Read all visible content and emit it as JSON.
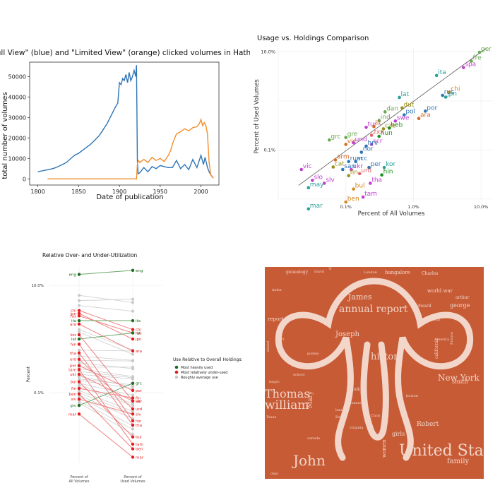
{
  "colors": {
    "blue": "#2e75b6",
    "orange": "#f28e2b",
    "green": "#1f6b1f",
    "red": "#e41a1c",
    "gray": "#c8c8c8",
    "cloud_bg": "#c75b36",
    "cloud_fg": "#f3d5c8"
  },
  "chart_data": [
    {
      "type": "line",
      "title": "\"Full View\" (blue) and \"Limited View\" (orange) clicked volumes in HathiTrust",
      "xlabel": "Date of publication",
      "ylabel": "total number of volumes",
      "xlim": [
        1790,
        2022
      ],
      "ylim": [
        -3000,
        57000
      ],
      "xticks": [
        1800,
        1850,
        1900,
        1950,
        2000
      ],
      "yticks": [
        0,
        10000,
        20000,
        30000,
        40000,
        50000
      ],
      "ytick_labels": [
        "0",
        "10000",
        "20000",
        "30000",
        "40000",
        "50000"
      ],
      "series": [
        {
          "name": "Full View",
          "color": "blue",
          "x": [
            1800,
            1805,
            1810,
            1815,
            1820,
            1825,
            1830,
            1835,
            1840,
            1845,
            1850,
            1855,
            1860,
            1865,
            1870,
            1875,
            1880,
            1885,
            1890,
            1895,
            1898,
            1900,
            1902,
            1904,
            1906,
            1908,
            1910,
            1912,
            1914,
            1916,
            1918,
            1920,
            1921,
            1922,
            1923,
            1925,
            1930,
            1935,
            1940,
            1945,
            1950,
            1955,
            1960,
            1965,
            1970,
            1975,
            1980,
            1985,
            1990,
            1995,
            2000,
            2003,
            2005,
            2008,
            2010,
            2012,
            2015
          ],
          "y": [
            3500,
            3900,
            4300,
            4700,
            5200,
            6000,
            7000,
            8000,
            9800,
            11500,
            12500,
            14000,
            15500,
            17000,
            19000,
            21000,
            24000,
            27000,
            31000,
            35000,
            37000,
            47000,
            46000,
            49000,
            48000,
            51000,
            47000,
            52000,
            48000,
            50000,
            53000,
            50000,
            55500,
            9000,
            2500,
            3000,
            5500,
            3500,
            6000,
            5000,
            6500,
            6000,
            5500,
            5500,
            9000,
            5000,
            7000,
            4500,
            9500,
            5500,
            11500,
            7000,
            10500,
            5500,
            3500,
            2000,
            500
          ]
        },
        {
          "name": "Limited View",
          "color": "orange",
          "x": [
            1812,
            1850,
            1900,
            1921,
            1922,
            1923,
            1925,
            1930,
            1935,
            1940,
            1945,
            1950,
            1955,
            1960,
            1963,
            1965,
            1968,
            1970,
            1975,
            1980,
            1985,
            1990,
            1995,
            1998,
            2000,
            2002,
            2004,
            2006,
            2008,
            2010,
            2012,
            2015
          ],
          "y": [
            0,
            0,
            0,
            0,
            7000,
            9000,
            8000,
            9500,
            8000,
            10500,
            9000,
            10000,
            8500,
            11500,
            14000,
            17000,
            20000,
            22000,
            23000,
            24500,
            23500,
            25000,
            25500,
            27000,
            29000,
            26000,
            27500,
            26000,
            22000,
            8000,
            2000,
            300
          ]
        }
      ]
    },
    {
      "type": "scatter",
      "title": "Usage vs. Holdings Comparison",
      "xlabel": "Percent of All Volumes",
      "ylabel": "Percent of Used Volumes",
      "xscale": "log",
      "yscale": "log",
      "xlim": [
        0.01,
        15
      ],
      "ylim": [
        0.009,
        12
      ],
      "xticks": [
        0.1,
        1,
        10
      ],
      "xtick_labels": [
        "0.1%",
        "1.0%",
        "10.0%"
      ],
      "yticks": [
        0.1,
        10
      ],
      "ytick_labels": [
        "0.1%",
        "10.0%"
      ],
      "reference_line": "y = x",
      "points": [
        {
          "label": "ger",
          "x": 9.5,
          "y": 9.8,
          "color": "#6aa84f"
        },
        {
          "label": "fre",
          "x": 7.2,
          "y": 6.5,
          "color": "#6aa84f"
        },
        {
          "label": "spa",
          "x": 5.5,
          "y": 4.8,
          "color": "#c13fd1"
        },
        {
          "label": "ita",
          "x": 2.2,
          "y": 3.3,
          "color": "#2aa198"
        },
        {
          "label": "chi",
          "x": 3.4,
          "y": 1.5,
          "color": "#d4881e"
        },
        {
          "label": "rus",
          "x": 2.7,
          "y": 1.3,
          "color": "#2e75b6"
        },
        {
          "label": "jpn",
          "x": 3.0,
          "y": 1.2,
          "color": "#2aa198"
        },
        {
          "label": "lat",
          "x": 0.62,
          "y": 1.18,
          "color": "#2aa198"
        },
        {
          "label": "dut",
          "x": 0.68,
          "y": 0.72,
          "color": "#9a8f1c"
        },
        {
          "label": "por",
          "x": 1.5,
          "y": 0.62,
          "color": "#2e75b6"
        },
        {
          "label": "pol",
          "x": 0.73,
          "y": 0.52,
          "color": "#2e75b6"
        },
        {
          "label": "ara",
          "x": 1.2,
          "y": 0.44,
          "color": "#d66b27"
        },
        {
          "label": "dan",
          "x": 0.38,
          "y": 0.6,
          "color": "#6aa84f"
        },
        {
          "label": "ind",
          "x": 0.31,
          "y": 0.4,
          "color": "#6aa84f"
        },
        {
          "label": "swe",
          "x": 0.54,
          "y": 0.39,
          "color": "#c13fd1"
        },
        {
          "label": "cze",
          "x": 0.36,
          "y": 0.27,
          "color": "#9a8f1c"
        },
        {
          "label": "heb",
          "x": 0.44,
          "y": 0.28,
          "color": "#1f8f1f"
        },
        {
          "label": "tur",
          "x": 0.2,
          "y": 0.29,
          "color": "#c13fd1"
        },
        {
          "label": "lit",
          "x": 0.26,
          "y": 0.3,
          "color": "#d66b27"
        },
        {
          "label": "zxx",
          "x": 0.24,
          "y": 0.2,
          "color": "#e06666"
        },
        {
          "label": "hun",
          "x": 0.31,
          "y": 0.19,
          "color": "#1f8f1f"
        },
        {
          "label": "grc",
          "x": 0.057,
          "y": 0.16,
          "color": "#6aa84f"
        },
        {
          "label": "gre",
          "x": 0.1,
          "y": 0.18,
          "color": "#6aa84f"
        },
        {
          "label": "vie",
          "x": 0.1,
          "y": 0.13,
          "color": "#d66b27"
        },
        {
          "label": "und",
          "x": 0.13,
          "y": 0.14,
          "color": "#c13fd1"
        },
        {
          "label": "scr",
          "x": 0.24,
          "y": 0.13,
          "color": "#c13fd1"
        },
        {
          "label": "hrv",
          "x": 0.2,
          "y": 0.12,
          "color": "#2e75b6"
        },
        {
          "label": "nor",
          "x": 0.17,
          "y": 0.09,
          "color": "#2e75b6"
        },
        {
          "label": "arm",
          "x": 0.07,
          "y": 0.063,
          "color": "#d66b27"
        },
        {
          "label": "rum",
          "x": 0.11,
          "y": 0.058,
          "color": "#2e75b6"
        },
        {
          "label": "scc",
          "x": 0.14,
          "y": 0.058,
          "color": "#2e75b6"
        },
        {
          "label": "cat",
          "x": 0.065,
          "y": 0.045,
          "color": "#9a8f1c"
        },
        {
          "label": "san",
          "x": 0.09,
          "y": 0.04,
          "color": "#2e75b6"
        },
        {
          "label": "ukr",
          "x": 0.12,
          "y": 0.04,
          "color": "#c13fd1"
        },
        {
          "label": "per",
          "x": 0.22,
          "y": 0.044,
          "color": "#2e75b6"
        },
        {
          "label": "kor",
          "x": 0.37,
          "y": 0.044,
          "color": "#2aa198"
        },
        {
          "label": "vic",
          "x": 0.022,
          "y": 0.04,
          "color": "#c13fd1"
        },
        {
          "label": "fin",
          "x": 0.11,
          "y": 0.03,
          "color": "#9a8f1c"
        },
        {
          "label": "urd",
          "x": 0.16,
          "y": 0.033,
          "color": "#e06666"
        },
        {
          "label": "hin",
          "x": 0.34,
          "y": 0.031,
          "color": "#1f8f1f"
        },
        {
          "label": "slo",
          "x": 0.032,
          "y": 0.024,
          "color": "#c13fd1"
        },
        {
          "label": "slv",
          "x": 0.048,
          "y": 0.021,
          "color": "#c13fd1"
        },
        {
          "label": "tha",
          "x": 0.23,
          "y": 0.021,
          "color": "#c13fd1"
        },
        {
          "label": "may",
          "x": 0.028,
          "y": 0.017,
          "color": "#2aa198"
        },
        {
          "label": "bul",
          "x": 0.13,
          "y": 0.016,
          "color": "#d4881e"
        },
        {
          "label": "tam",
          "x": 0.18,
          "y": 0.011,
          "color": "#c13fd1"
        },
        {
          "label": "ben",
          "x": 0.1,
          "y": 0.0087,
          "color": "#d4881e"
        },
        {
          "label": "mar",
          "x": 0.028,
          "y": 0.0063,
          "color": "#2aa198"
        }
      ]
    },
    {
      "type": "slope",
      "title": "Relative Over- and Under-Utilization",
      "ylabel": "Percent",
      "yscale": "log",
      "ylim": [
        0.005,
        22
      ],
      "yticks": [
        0.1,
        10
      ],
      "ytick_labels": [
        "0.1%",
        "10.0%"
      ],
      "categories": [
        "Percent of All Volumes",
        "Percent of Used Volumes"
      ],
      "legend_title": "Use Relative to Overall Holdings:",
      "legend": [
        {
          "label": "Most heavily used",
          "color": "green"
        },
        {
          "label": "Most relatively under-used",
          "color": "red"
        },
        {
          "label": "Roughly average use",
          "color": "gray"
        }
      ],
      "lines": [
        {
          "label": "eng",
          "left": 16,
          "right": 19,
          "group": "green"
        },
        {
          "label": "chi",
          "left": 3.4,
          "right": 1.5,
          "group": "red"
        },
        {
          "label": "jpn",
          "left": 3.0,
          "right": 1.0,
          "group": "red"
        },
        {
          "label": "rus",
          "left": 2.7,
          "right": 1.3,
          "group": "red"
        },
        {
          "label": "ita",
          "left": 2.2,
          "right": 2.2,
          "group": "green"
        },
        {
          "label": "ara",
          "left": 1.9,
          "right": 0.6,
          "group": "red"
        },
        {
          "label": "lat",
          "left": 1.0,
          "right": 1.3,
          "group": "green"
        },
        {
          "label": "kor",
          "left": 1.2,
          "right": 0.07,
          "group": "red"
        },
        {
          "label": "hin",
          "left": 0.8,
          "right": 0.03,
          "group": "red"
        },
        {
          "label": "tha",
          "left": 0.55,
          "right": 0.025,
          "group": "red"
        },
        {
          "label": "urd",
          "left": 0.42,
          "right": 0.05,
          "group": "red"
        },
        {
          "label": "per",
          "left": 0.32,
          "right": 0.11,
          "group": "red"
        },
        {
          "label": "tam",
          "left": 0.27,
          "right": 0.011,
          "group": "red"
        },
        {
          "label": "ukr",
          "left": 0.22,
          "right": 0.07,
          "group": "red"
        },
        {
          "label": "bul",
          "left": 0.16,
          "right": 0.015,
          "group": "red"
        },
        {
          "label": "fin",
          "left": 0.12,
          "right": 0.08,
          "group": "red"
        },
        {
          "label": "ben",
          "left": 0.095,
          "right": 0.009,
          "group": "red"
        },
        {
          "label": "slv",
          "left": 0.076,
          "right": 0.04,
          "group": "red"
        },
        {
          "label": "grc",
          "left": 0.058,
          "right": 0.15,
          "group": "green"
        },
        {
          "label": "mar",
          "left": 0.04,
          "right": 0.0063,
          "group": "red"
        }
      ],
      "gray_lines": [
        [
          6.5,
          4.8
        ],
        [
          5.2,
          5.5
        ],
        [
          4.2,
          3.3
        ],
        [
          1.5,
          0.62
        ],
        [
          1.35,
          0.52
        ],
        [
          0.62,
          0.6
        ],
        [
          0.48,
          0.4
        ],
        [
          0.4,
          0.39
        ],
        [
          0.36,
          0.28
        ],
        [
          0.3,
          0.3
        ],
        [
          0.28,
          0.2
        ],
        [
          0.25,
          0.19
        ],
        [
          0.22,
          0.18
        ],
        [
          0.2,
          0.13
        ],
        [
          0.18,
          0.14
        ],
        [
          0.17,
          0.12
        ],
        [
          0.15,
          0.09
        ],
        [
          0.14,
          0.063
        ],
        [
          0.13,
          0.058
        ],
        [
          0.11,
          0.045
        ],
        [
          0.1,
          0.04
        ],
        [
          0.09,
          0.033
        ],
        [
          0.085,
          0.024
        ],
        [
          0.07,
          0.021
        ],
        [
          0.065,
          0.017
        ]
      ]
    }
  ],
  "wordcloud": {
    "words": [
      "United States",
      "John",
      "william",
      "Thomas",
      "annual report",
      "history",
      "New York",
      "James",
      "Joseph",
      "family",
      "Mary",
      "Robert",
      "george",
      "girls",
      "smith",
      "bangalore",
      "report",
      "women",
      "world war",
      "arthur",
      "book",
      "Edward",
      "Charles",
      "genealogy",
      "california",
      "journal",
      "school",
      "Texas",
      "virginia",
      "London",
      "America",
      "daniel",
      "samuel",
      "henry",
      "Paris",
      "Chris",
      "poems",
      "david",
      "France",
      "boston",
      "canada",
      "art",
      "ohio",
      "negro",
      "index",
      "david"
    ]
  }
}
